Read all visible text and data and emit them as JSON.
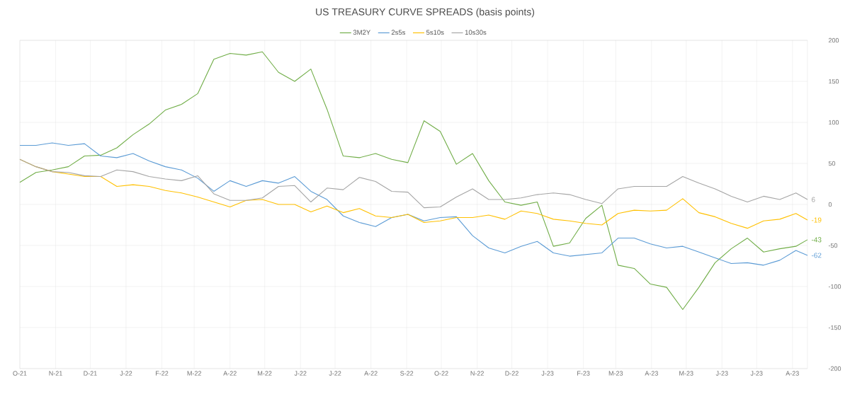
{
  "chart_data": {
    "type": "line",
    "title": "US TREASURY CURVE SPREADS (basis points)",
    "x": [
      "2021-10-01",
      "2021-10-15",
      "2021-10-29",
      "2021-11-12",
      "2021-11-26",
      "2021-12-10",
      "2021-12-24",
      "2022-01-07",
      "2022-01-21",
      "2022-02-04",
      "2022-02-18",
      "2022-03-04",
      "2022-03-18",
      "2022-04-01",
      "2022-04-15",
      "2022-04-29",
      "2022-05-13",
      "2022-05-27",
      "2022-06-10",
      "2022-06-24",
      "2022-07-08",
      "2022-07-22",
      "2022-08-05",
      "2022-08-19",
      "2022-09-02",
      "2022-09-16",
      "2022-09-30",
      "2022-10-14",
      "2022-10-28",
      "2022-11-11",
      "2022-11-25",
      "2022-12-09",
      "2022-12-23",
      "2023-01-06",
      "2023-01-20",
      "2023-02-03",
      "2023-02-17",
      "2023-03-03",
      "2023-03-17",
      "2023-03-31",
      "2023-04-14",
      "2023-04-28",
      "2023-05-12",
      "2023-05-26",
      "2023-06-09",
      "2023-06-23",
      "2023-07-07",
      "2023-07-21",
      "2023-08-04",
      "2023-08-14"
    ],
    "series": [
      {
        "name": "3M2Y",
        "color": "#70ad47",
        "values": [
          27,
          39,
          42,
          46,
          59,
          60,
          69,
          85,
          98,
          115,
          122,
          135,
          177,
          184,
          182,
          186,
          161,
          150,
          165,
          116,
          59,
          57,
          62,
          55,
          51,
          102,
          89,
          49,
          62,
          29,
          3,
          -1,
          3,
          -51,
          -47,
          -17,
          -1,
          -74,
          -78,
          -97,
          -101,
          -128,
          -101,
          -71,
          -54,
          -41,
          -58,
          -54,
          -51,
          -43
        ],
        "value_labels": [
          null,
          null,
          null,
          null,
          null,
          null,
          null,
          null,
          null,
          null,
          null,
          null,
          null,
          null,
          null,
          null,
          null,
          null,
          null,
          null,
          null,
          null,
          null,
          null,
          null,
          null,
          null,
          null,
          null,
          null,
          null,
          null,
          null,
          null,
          null,
          null,
          null,
          null,
          null,
          null,
          null,
          null,
          null,
          null,
          null,
          null,
          null,
          null,
          null,
          "-43"
        ]
      },
      {
        "name": "2s5s",
        "color": "#5b9bd5",
        "values": [
          72,
          72,
          75,
          72,
          74,
          59,
          57,
          62,
          53,
          46,
          42,
          32,
          16,
          29,
          22,
          29,
          26,
          34,
          16,
          6,
          -14,
          -22,
          -27,
          -16,
          -12,
          -20,
          -16,
          -15,
          -38,
          -53,
          -59,
          -51,
          -45,
          -59,
          -63,
          -61,
          -59,
          -41,
          -41,
          -48,
          -53,
          -51,
          -58,
          -65,
          -72,
          -71,
          -74,
          -68,
          -56,
          -62
        ],
        "value_labels": [
          null,
          null,
          null,
          null,
          null,
          null,
          null,
          null,
          null,
          null,
          null,
          null,
          null,
          null,
          null,
          null,
          null,
          null,
          null,
          null,
          null,
          null,
          null,
          null,
          null,
          null,
          null,
          null,
          null,
          null,
          null,
          null,
          null,
          null,
          null,
          null,
          null,
          null,
          null,
          null,
          null,
          null,
          null,
          null,
          null,
          null,
          null,
          null,
          null,
          "-62"
        ]
      },
      {
        "name": "5s10s",
        "color": "#ffc000",
        "values": [
          55,
          46,
          40,
          37,
          34,
          34,
          22,
          24,
          22,
          17,
          14,
          9,
          3,
          -3,
          5,
          6,
          0,
          0,
          -9,
          -2,
          -10,
          -5,
          -14,
          -16,
          -12,
          -22,
          -20,
          -16,
          -16,
          -13,
          -18,
          -8,
          -11,
          -18,
          -20,
          -23,
          -25,
          -11,
          -7,
          -8,
          -7,
          7,
          -10,
          -15,
          -23,
          -29,
          -20,
          -18,
          -11,
          -19
        ],
        "value_labels": [
          null,
          null,
          null,
          null,
          null,
          null,
          null,
          null,
          null,
          null,
          null,
          null,
          null,
          null,
          null,
          null,
          null,
          null,
          null,
          null,
          null,
          null,
          null,
          null,
          null,
          null,
          null,
          null,
          null,
          null,
          null,
          null,
          null,
          null,
          null,
          null,
          null,
          null,
          null,
          null,
          null,
          null,
          null,
          null,
          null,
          null,
          null,
          null,
          null,
          "-19"
        ]
      },
      {
        "name": "10s30s",
        "color": "#a5a5a5",
        "values": [
          55,
          46,
          40,
          39,
          35,
          34,
          42,
          40,
          34,
          31,
          29,
          35,
          13,
          5,
          5,
          8,
          22,
          23,
          3,
          20,
          18,
          33,
          28,
          16,
          15,
          -4,
          -3,
          9,
          19,
          6,
          6,
          8,
          12,
          14,
          12,
          6,
          1,
          19,
          22,
          22,
          22,
          34,
          26,
          19,
          10,
          3,
          10,
          6,
          14,
          6
        ],
        "value_labels": [
          null,
          null,
          null,
          null,
          null,
          null,
          null,
          null,
          null,
          null,
          null,
          null,
          null,
          null,
          null,
          null,
          null,
          null,
          null,
          null,
          null,
          null,
          null,
          null,
          null,
          null,
          null,
          null,
          null,
          null,
          null,
          null,
          null,
          null,
          null,
          null,
          null,
          null,
          null,
          null,
          null,
          null,
          null,
          null,
          null,
          null,
          null,
          null,
          null,
          "6"
        ]
      }
    ],
    "xlim": [
      "2021-10-01",
      "2023-08-14"
    ],
    "xticks": [
      {
        "value": "2021-10-01",
        "label": "O-21"
      },
      {
        "value": "2021-11-01",
        "label": "N-21"
      },
      {
        "value": "2021-12-01",
        "label": "D-21"
      },
      {
        "value": "2022-01-01",
        "label": "J-22"
      },
      {
        "value": "2022-02-01",
        "label": "F-22"
      },
      {
        "value": "2022-03-01",
        "label": "M-22"
      },
      {
        "value": "2022-04-01",
        "label": "A-22"
      },
      {
        "value": "2022-05-01",
        "label": "M-22"
      },
      {
        "value": "2022-06-01",
        "label": "J-22"
      },
      {
        "value": "2022-07-01",
        "label": "J-22"
      },
      {
        "value": "2022-08-01",
        "label": "A-22"
      },
      {
        "value": "2022-09-01",
        "label": "S-22"
      },
      {
        "value": "2022-10-01",
        "label": "O-22"
      },
      {
        "value": "2022-11-01",
        "label": "N-22"
      },
      {
        "value": "2022-12-01",
        "label": "D-22"
      },
      {
        "value": "2023-01-01",
        "label": "J-23"
      },
      {
        "value": "2023-02-01",
        "label": "F-23"
      },
      {
        "value": "2023-03-01",
        "label": "M-23"
      },
      {
        "value": "2023-04-01",
        "label": "A-23"
      },
      {
        "value": "2023-05-01",
        "label": "M-23"
      },
      {
        "value": "2023-06-01",
        "label": "J-23"
      },
      {
        "value": "2023-07-01",
        "label": "J-23"
      },
      {
        "value": "2023-08-01",
        "label": "A-23"
      }
    ],
    "ylim": [
      -200,
      200
    ],
    "yticks": [
      -200,
      -150,
      -100,
      -50,
      0,
      50,
      100,
      150,
      200
    ],
    "grid": true,
    "legend": "top"
  }
}
